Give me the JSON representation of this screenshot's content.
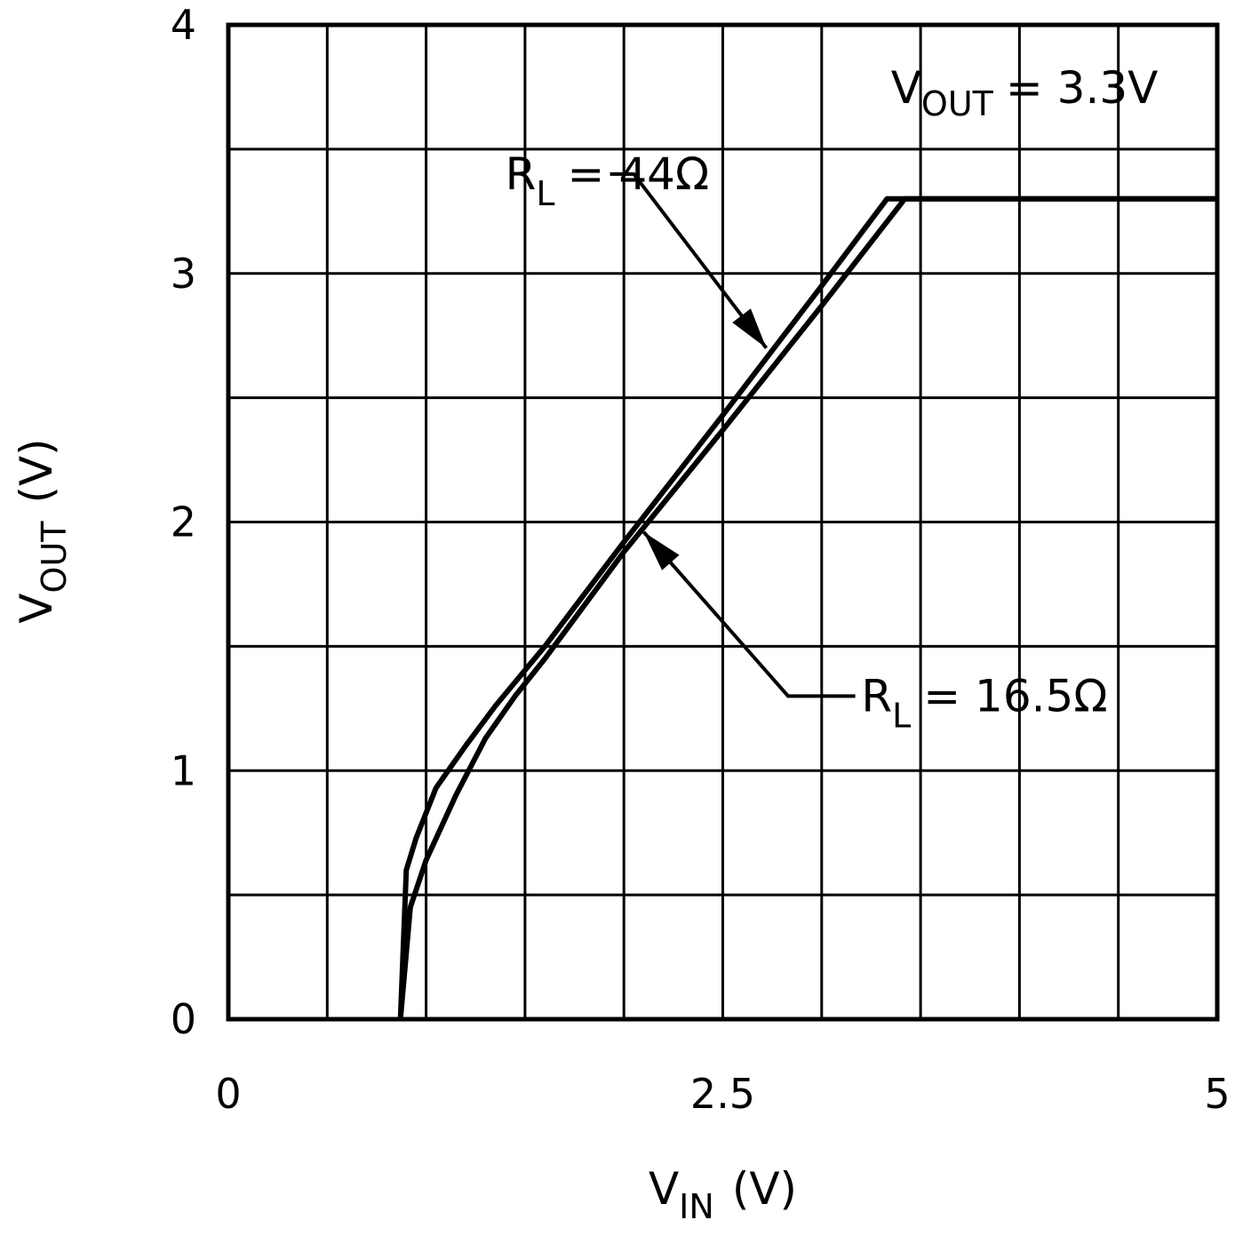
{
  "chart_data": {
    "type": "line",
    "xlabel": {
      "main": "V",
      "sub": "IN",
      "unit": "(V)"
    },
    "ylabel": {
      "main": "V",
      "sub": "OUT",
      "unit": "(V)"
    },
    "xlim": [
      0,
      5
    ],
    "ylim": [
      0,
      4
    ],
    "x_ticks": [
      {
        "value": 0,
        "label": "0"
      },
      {
        "value": 2.5,
        "label": "2.5"
      },
      {
        "value": 5,
        "label": "5"
      }
    ],
    "y_ticks": [
      {
        "value": 0,
        "label": "0"
      },
      {
        "value": 1,
        "label": "1"
      },
      {
        "value": 2,
        "label": "2"
      },
      {
        "value": 3,
        "label": "3"
      },
      {
        "value": 4,
        "label": "4"
      }
    ],
    "grid": {
      "x_step": 0.5,
      "y_step": 0.5
    },
    "condition": {
      "main": "V",
      "sub": "OUT",
      "rest": "= 3.3V"
    },
    "series": [
      {
        "label": {
          "main": "R",
          "sub": "L",
          "rest": "= 44Ω"
        },
        "points": [
          [
            0.87,
            0
          ],
          [
            0.9,
            0.6
          ],
          [
            0.95,
            0.73
          ],
          [
            1.05,
            0.93
          ],
          [
            1.2,
            1.1
          ],
          [
            1.35,
            1.26
          ],
          [
            1.6,
            1.5
          ],
          [
            2.0,
            1.92
          ],
          [
            2.5,
            2.43
          ],
          [
            3.0,
            2.95
          ],
          [
            3.33,
            3.3
          ],
          [
            5,
            3.3
          ]
        ]
      },
      {
        "label": {
          "main": "R",
          "sub": "L",
          "rest": "= 16.5Ω"
        },
        "points": [
          [
            0.87,
            0
          ],
          [
            0.92,
            0.45
          ],
          [
            1.0,
            0.64
          ],
          [
            1.15,
            0.9
          ],
          [
            1.3,
            1.13
          ],
          [
            1.45,
            1.3
          ],
          [
            1.6,
            1.45
          ],
          [
            2.0,
            1.88
          ],
          [
            2.5,
            2.37
          ],
          [
            3.0,
            2.87
          ],
          [
            3.42,
            3.3
          ],
          [
            5,
            3.3
          ]
        ]
      }
    ],
    "arrows": [
      {
        "series": 0,
        "text_at": [
          1.4,
          3.4
        ],
        "path": [
          [
            1.93,
            3.4
          ],
          [
            2.05,
            3.4
          ],
          [
            2.72,
            2.7
          ]
        ]
      },
      {
        "series": 1,
        "text_at": [
          3.2,
          1.3
        ],
        "path": [
          [
            3.17,
            1.3
          ],
          [
            2.83,
            1.3
          ],
          [
            2.1,
            1.96
          ]
        ]
      }
    ]
  }
}
